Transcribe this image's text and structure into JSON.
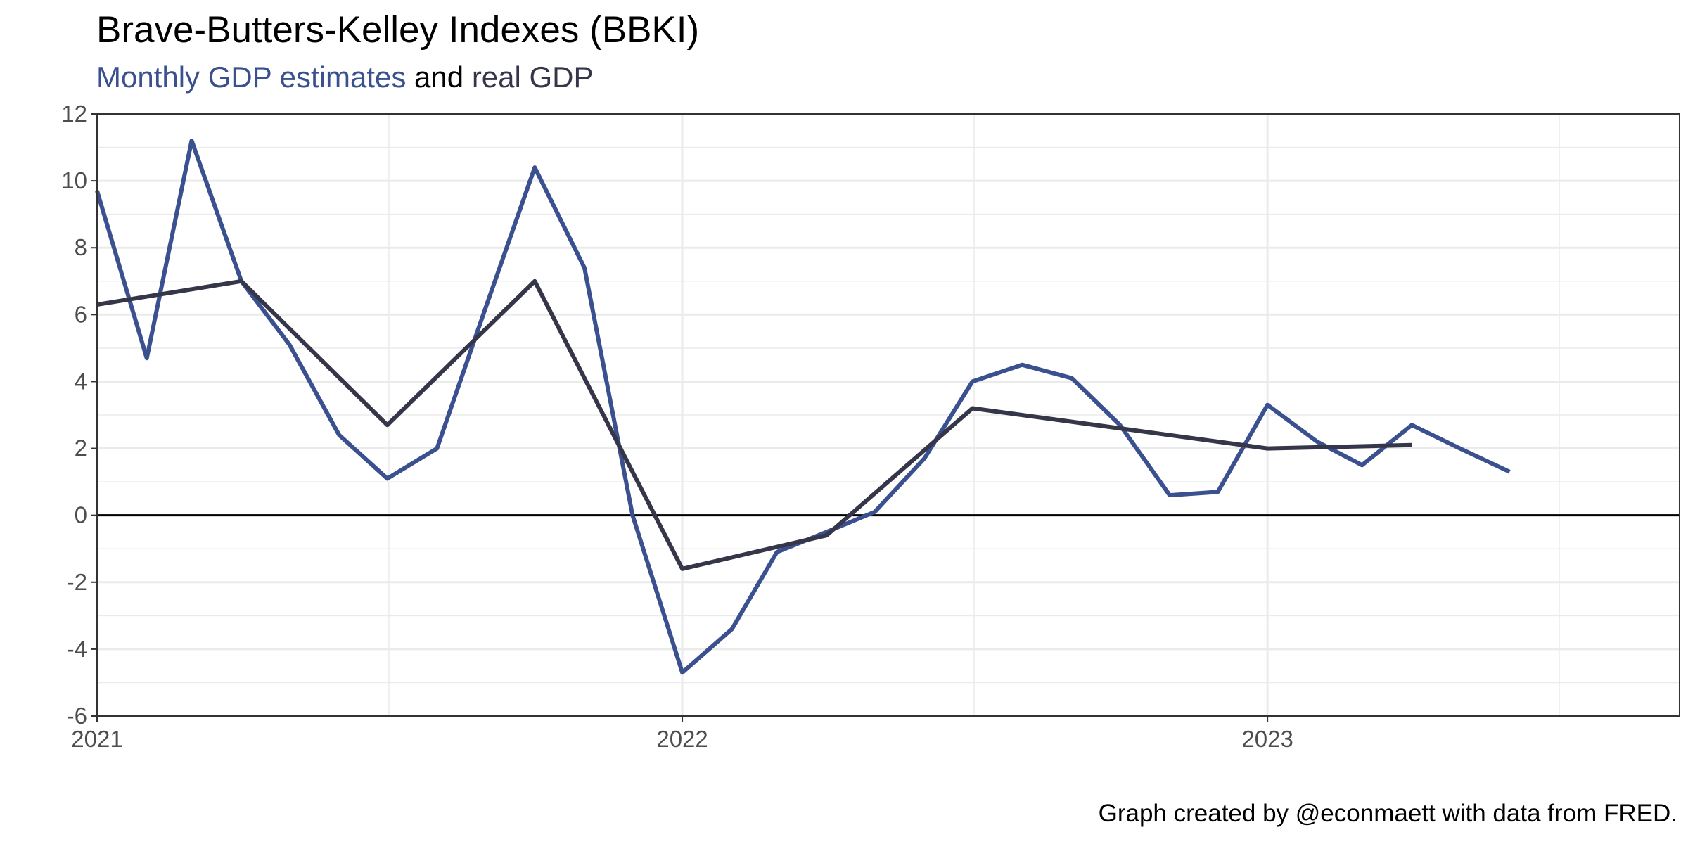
{
  "chart_data": {
    "type": "line",
    "title": "Brave-Butters-Kelley Indexes (BBKI)",
    "subtitle": {
      "part1": "Monthly GDP estimates",
      "part2": " and ",
      "part3": "real GDP"
    },
    "caption": "Graph created by @econmaett with data from FRED.",
    "xlabel": "",
    "ylabel": "",
    "x_ticks": [
      {
        "date": "2021-01-01",
        "label": "2021"
      },
      {
        "date": "2022-01-01",
        "label": "2022"
      },
      {
        "date": "2023-01-01",
        "label": "2023"
      }
    ],
    "xlim": [
      "2021-01-01",
      "2023-09-15"
    ],
    "ylim": [
      -6,
      12
    ],
    "y_ticks": [
      -6,
      -4,
      -2,
      0,
      2,
      4,
      6,
      8,
      10,
      12
    ],
    "grid": true,
    "legend": "none",
    "colors": {
      "monthly": "#3a508f",
      "real": "#36364a",
      "zero_line": "#000000",
      "grid": "#ebebeb"
    },
    "series": [
      {
        "name": "Monthly GDP estimates",
        "x": [
          "2021-01-01",
          "2021-02-01",
          "2021-03-01",
          "2021-04-01",
          "2021-05-01",
          "2021-06-01",
          "2021-07-01",
          "2021-08-01",
          "2021-09-01",
          "2021-10-01",
          "2021-11-01",
          "2021-12-01",
          "2022-01-01",
          "2022-02-01",
          "2022-03-01",
          "2022-04-01",
          "2022-05-01",
          "2022-06-01",
          "2022-07-01",
          "2022-08-01",
          "2022-09-01",
          "2022-10-01",
          "2022-11-01",
          "2022-12-01",
          "2023-01-01",
          "2023-02-01",
          "2023-03-01",
          "2023-04-01",
          "2023-05-01",
          "2023-06-01"
        ],
        "values": [
          9.7,
          4.7,
          11.2,
          7.0,
          5.1,
          2.4,
          1.1,
          2.0,
          6.3,
          10.4,
          7.4,
          0.0,
          -4.7,
          -3.4,
          -1.1,
          -0.5,
          0.1,
          1.7,
          4.0,
          4.5,
          4.1,
          2.7,
          0.6,
          0.7,
          3.3,
          2.2,
          1.5,
          2.7,
          2.0,
          1.3
        ]
      },
      {
        "name": "real GDP",
        "x": [
          "2021-01-01",
          "2021-04-01",
          "2021-07-01",
          "2021-10-01",
          "2022-01-01",
          "2022-04-01",
          "2022-07-01",
          "2022-10-01",
          "2023-01-01",
          "2023-04-01"
        ],
        "values": [
          6.3,
          7.0,
          2.7,
          7.0,
          -1.6,
          -0.6,
          3.2,
          2.6,
          2.0,
          2.1
        ]
      }
    ]
  }
}
